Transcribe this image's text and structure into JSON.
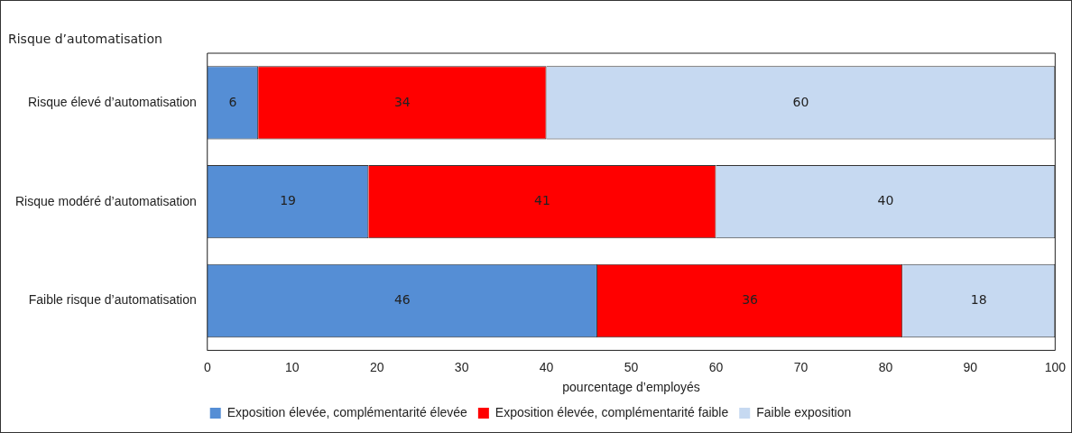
{
  "chart_data": {
    "type": "bar",
    "orientation": "horizontal",
    "stacked": true,
    "ylabel": "Risque d’automatisation",
    "xlabel": "pourcentage d’employés",
    "categories": [
      "Risque élevé d’automatisation",
      "Risque modéré d’automatisation",
      "Faible risque d’automatisation"
    ],
    "series": [
      {
        "name": "Exposition élevée, complémentarité élevée",
        "color": "#558ed5",
        "values": [
          6,
          19,
          46
        ]
      },
      {
        "name": "Exposition élevée, complémentarité faible",
        "color": "#ff0000",
        "values": [
          34,
          41,
          36
        ]
      },
      {
        "name": "Faible exposition",
        "color": "#c6d9f1",
        "values": [
          60,
          40,
          18
        ]
      }
    ],
    "xlim": [
      0,
      100
    ],
    "xticks": [
      0,
      10,
      20,
      30,
      40,
      50,
      60,
      70,
      80,
      90,
      100
    ],
    "grid": false,
    "legend": "bottom",
    "data_labels": true
  }
}
